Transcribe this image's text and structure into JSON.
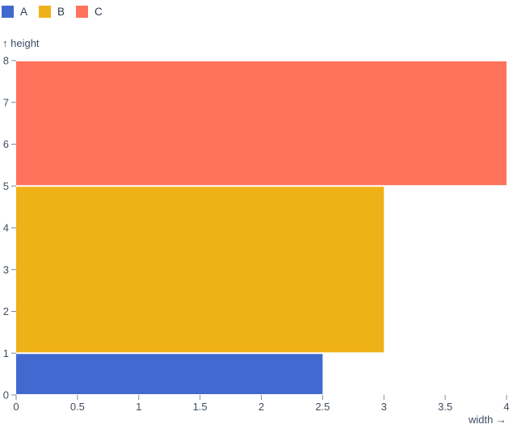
{
  "legend": {
    "items": [
      {
        "label": "A",
        "color": "#4269d0"
      },
      {
        "label": "B",
        "color": "#efb118"
      },
      {
        "label": "C",
        "color": "#ff725c"
      }
    ]
  },
  "chart_data": {
    "type": "bar",
    "orientation": "horizontal-stacked-rects",
    "xlabel": "width →",
    "ylabel": "↑ height",
    "xlim": [
      0,
      4
    ],
    "ylim": [
      0,
      8
    ],
    "x_ticks": [
      0,
      0.5,
      1,
      1.5,
      2,
      2.5,
      3,
      3.5,
      4
    ],
    "y_ticks": [
      0,
      1,
      2,
      3,
      4,
      5,
      6,
      7,
      8
    ],
    "grid": false,
    "legend_position": "top-left",
    "series": [
      {
        "name": "A",
        "color": "#4269d0",
        "x0": 0,
        "x1": 2.5,
        "y0": 0,
        "y1": 1
      },
      {
        "name": "B",
        "color": "#efb118",
        "x0": 0,
        "x1": 3,
        "y0": 1,
        "y1": 5
      },
      {
        "name": "C",
        "color": "#ff725c",
        "x0": 0,
        "x1": 4,
        "y0": 5,
        "y1": 8
      }
    ],
    "colors": {
      "tick_text": "#3f4e63",
      "axis_label_text": "#3f4e63",
      "tick_line": "#7d8896",
      "background": "#ffffff",
      "bar_gap": "#ffffff"
    }
  }
}
